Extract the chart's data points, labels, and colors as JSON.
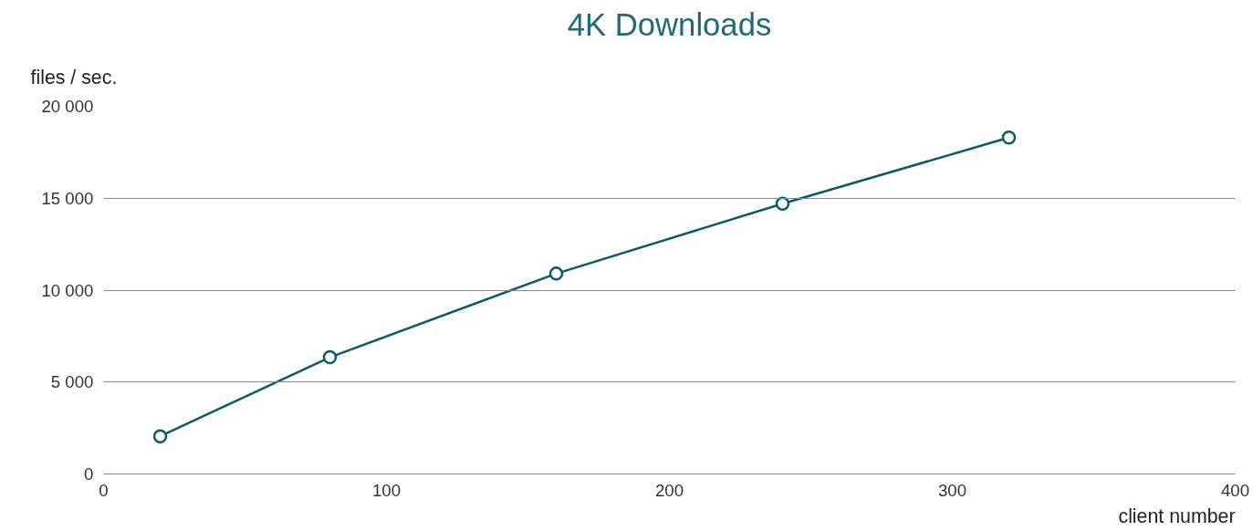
{
  "chart_data": {
    "type": "line",
    "title": "4K Downloads",
    "xlabel": "client number",
    "ylabel": "files / sec.",
    "x": [
      20,
      80,
      160,
      240,
      320
    ],
    "series": [
      {
        "color": "#0d5964",
        "values": [
          2050,
          6350,
          10900,
          14700,
          18300
        ]
      }
    ],
    "xlim": [
      0,
      400
    ],
    "xticks": [
      0,
      100,
      200,
      300,
      400
    ],
    "ylim": [
      0,
      20000
    ],
    "yticks": [
      {
        "value": 0,
        "label": "0"
      },
      {
        "value": 5000,
        "label": "5 000"
      },
      {
        "value": 10000,
        "label": "10 000"
      },
      {
        "value": 15000,
        "label": "15 000"
      },
      {
        "value": 20000,
        "label": "20 000"
      }
    ],
    "grid": "y",
    "marker": "circle",
    "line_style": "solid"
  }
}
